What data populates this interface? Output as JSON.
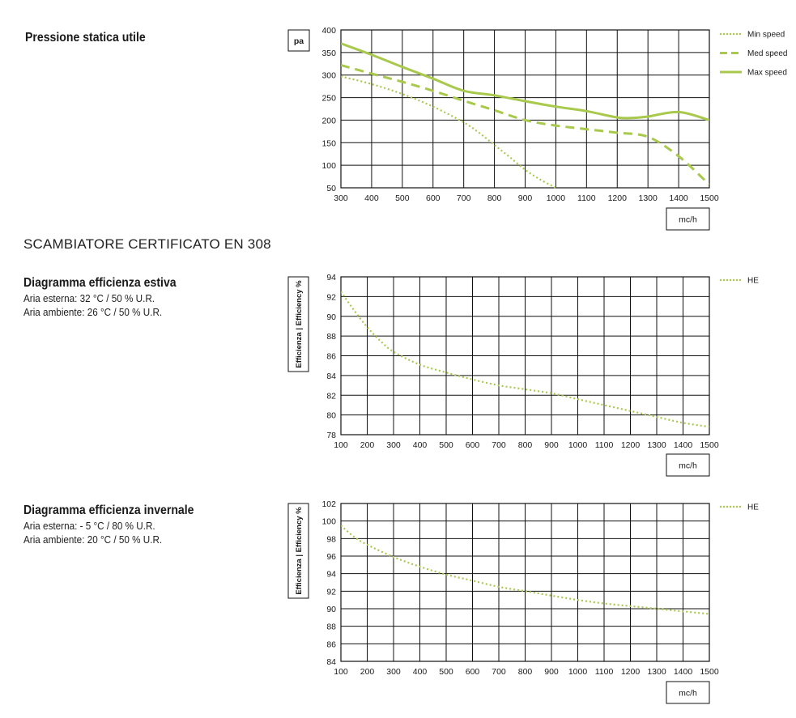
{
  "colors": {
    "series": "#a8c94c",
    "grid": "#111111",
    "text": "#1a1a1a"
  },
  "section_title": "SCAMBIATORE CERTIFICATO EN 308",
  "charts_meta": [
    {
      "heading": "Pressione statica utile",
      "lines": []
    },
    {
      "heading": "Diagramma efficienza estiva",
      "lines": [
        "Aria esterna: 32 °C / 50 % U.R.",
        "Aria ambiente: 26 °C / 50 % U.R."
      ]
    },
    {
      "heading": "Diagramma efficienza invernale",
      "lines": [
        "Aria esterna: - 5 °C / 80 % U.R.",
        "Aria ambiente: 20 °C / 50 % U.R."
      ]
    }
  ],
  "chart_data": [
    {
      "type": "line",
      "title": "Pressione statica utile",
      "ylabel": "pa",
      "xlabel": "mc/h",
      "xlim": [
        300,
        1500
      ],
      "ylim": [
        50,
        400
      ],
      "xticks": [
        300,
        400,
        500,
        600,
        700,
        800,
        900,
        1000,
        1100,
        1200,
        1300,
        1400,
        1500
      ],
      "yticks": [
        50,
        100,
        150,
        200,
        250,
        300,
        350,
        400
      ],
      "grid": true,
      "legend_position": "right",
      "series": [
        {
          "name": "Min speed",
          "style": "dotted",
          "x": [
            300,
            400,
            500,
            600,
            700,
            750,
            800,
            850,
            900,
            950,
            1000
          ],
          "y": [
            297,
            280,
            258,
            230,
            195,
            172,
            145,
            118,
            90,
            68,
            50
          ]
        },
        {
          "name": "Med speed",
          "style": "dashed",
          "x": [
            300,
            400,
            500,
            600,
            700,
            800,
            900,
            1000,
            1100,
            1200,
            1300,
            1400,
            1500
          ],
          "y": [
            322,
            303,
            285,
            265,
            243,
            222,
            200,
            188,
            180,
            172,
            163,
            120,
            57
          ]
        },
        {
          "name": "Max speed",
          "style": "solid",
          "x": [
            300,
            400,
            500,
            600,
            700,
            800,
            900,
            1000,
            1100,
            1200,
            1250,
            1300,
            1400,
            1500
          ],
          "y": [
            370,
            345,
            318,
            292,
            265,
            255,
            242,
            230,
            220,
            206,
            205,
            208,
            218,
            200
          ]
        }
      ]
    },
    {
      "type": "line",
      "title": "Diagramma efficienza estiva",
      "ylabel": "Efficienza | Efficiency %",
      "xlabel": "mc/h",
      "xlim": [
        100,
        1500
      ],
      "ylim": [
        78,
        94
      ],
      "xticks": [
        100,
        200,
        300,
        400,
        500,
        600,
        700,
        800,
        900,
        1000,
        1100,
        1200,
        1300,
        1400,
        1500
      ],
      "yticks": [
        78,
        80,
        82,
        84,
        86,
        88,
        90,
        92,
        94
      ],
      "grid": true,
      "legend_position": "right",
      "series": [
        {
          "name": "HE",
          "style": "dotted",
          "x": [
            100,
            150,
            200,
            250,
            300,
            400,
            500,
            600,
            700,
            800,
            900,
            1000,
            1100,
            1200,
            1300,
            1400,
            1500
          ],
          "y": [
            92.5,
            90.6,
            88.9,
            87.5,
            86.4,
            85.1,
            84.3,
            83.6,
            83.0,
            82.6,
            82.2,
            81.6,
            81.0,
            80.4,
            79.8,
            79.2,
            78.8
          ]
        }
      ]
    },
    {
      "type": "line",
      "title": "Diagramma efficienza invernale",
      "ylabel": "Efficienza | Efficiency %",
      "xlabel": "mc/h",
      "xlim": [
        100,
        1500
      ],
      "ylim": [
        84,
        102
      ],
      "xticks": [
        100,
        200,
        300,
        400,
        500,
        600,
        700,
        800,
        900,
        1000,
        1100,
        1200,
        1300,
        1400,
        1500
      ],
      "yticks": [
        84,
        86,
        88,
        90,
        92,
        94,
        96,
        98,
        100,
        102
      ],
      "grid": true,
      "legend_position": "right",
      "series": [
        {
          "name": "HE",
          "style": "dotted",
          "x": [
            100,
            150,
            200,
            300,
            400,
            500,
            600,
            700,
            800,
            900,
            1000,
            1100,
            1200,
            1300,
            1400,
            1500
          ],
          "y": [
            99.5,
            98.2,
            97.3,
            95.9,
            94.8,
            93.9,
            93.2,
            92.5,
            92.0,
            91.5,
            91.0,
            90.6,
            90.3,
            90.0,
            89.7,
            89.4
          ]
        }
      ]
    }
  ]
}
